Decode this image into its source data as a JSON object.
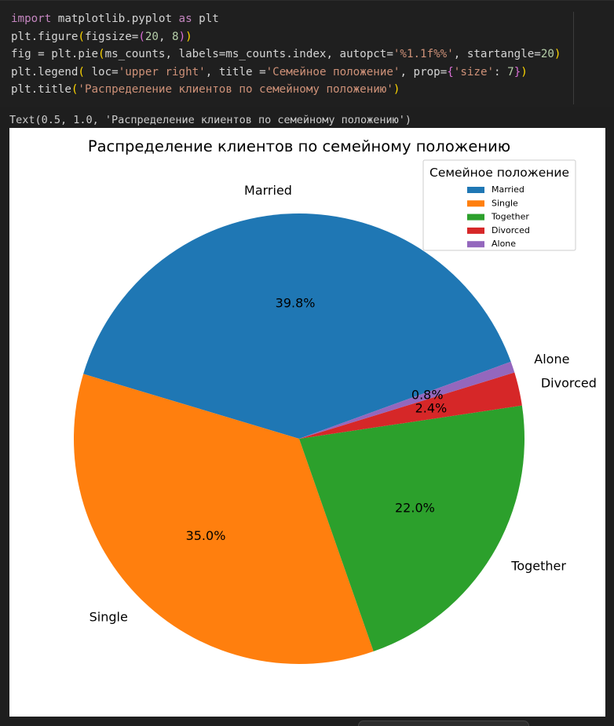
{
  "code_cell": {
    "lines": [
      [
        {
          "t": "import",
          "c": "kw"
        },
        {
          "t": " matplotlib.pyplot "
        },
        {
          "t": "as",
          "c": "kw"
        },
        {
          "t": " plt"
        }
      ],
      [
        {
          "t": "plt.figure"
        },
        {
          "t": "(",
          "c": "br1"
        },
        {
          "t": "figsize="
        },
        {
          "t": "(",
          "c": "br2"
        },
        {
          "t": "20",
          "c": "num"
        },
        {
          "t": ", "
        },
        {
          "t": "8",
          "c": "num"
        },
        {
          "t": ")",
          "c": "br2"
        },
        {
          "t": ")",
          "c": "br1"
        }
      ],
      [
        {
          "t": "fig = plt.pie"
        },
        {
          "t": "(",
          "c": "br1"
        },
        {
          "t": "ms_counts, labels=ms_counts.index, autopct="
        },
        {
          "t": "'%1.1f%%'",
          "c": "str"
        },
        {
          "t": ", startangle="
        },
        {
          "t": "20",
          "c": "num"
        },
        {
          "t": ")",
          "c": "br1"
        }
      ],
      [
        {
          "t": "plt.legend"
        },
        {
          "t": "(",
          "c": "br1"
        },
        {
          "t": " loc="
        },
        {
          "t": "'upper right'",
          "c": "str"
        },
        {
          "t": ", title ="
        },
        {
          "t": "'Семейное положение'",
          "c": "str"
        },
        {
          "t": ", prop="
        },
        {
          "t": "{",
          "c": "br2"
        },
        {
          "t": "'size'",
          "c": "str"
        },
        {
          "t": ": "
        },
        {
          "t": "7",
          "c": "num"
        },
        {
          "t": "}",
          "c": "br2"
        },
        {
          "t": ")",
          "c": "br1"
        }
      ],
      [
        {
          "t": "plt.title"
        },
        {
          "t": "(",
          "c": "br1"
        },
        {
          "t": "'Распределение клиентов по семейному положению'",
          "c": "str"
        },
        {
          "t": ")",
          "c": "br1"
        }
      ]
    ]
  },
  "output_text": "Text(0.5, 1.0, 'Распределение клиентов по семейному положению')",
  "chart_data": {
    "type": "pie",
    "title": "Распределение клиентов по семейному положению",
    "start_angle": 20,
    "categories": [
      "Married",
      "Single",
      "Together",
      "Divorced",
      "Alone"
    ],
    "values": [
      39.8,
      35.0,
      22.0,
      2.4,
      0.8
    ],
    "pct_labels": [
      "39.8%",
      "35.0%",
      "22.0%",
      "2.4%",
      "0.8%"
    ],
    "colors": [
      "#1f77b4",
      "#ff7f0e",
      "#2ca02c",
      "#d62728",
      "#9467bd"
    ],
    "legend": {
      "title": "Семейное положение",
      "placement": "upper right",
      "entries": [
        "Married",
        "Single",
        "Together",
        "Divorced",
        "Alone"
      ]
    }
  }
}
